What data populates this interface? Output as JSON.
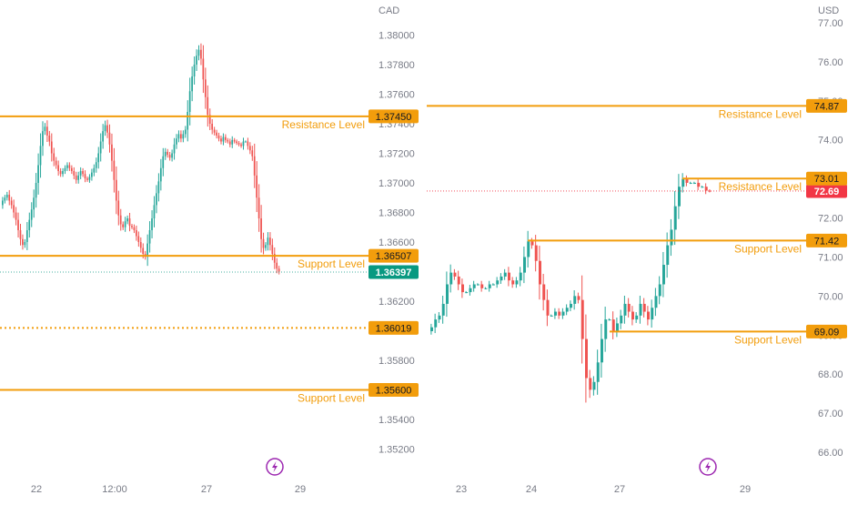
{
  "colors": {
    "up": "#26a69a",
    "down": "#ef5350",
    "level": "#f29d0c",
    "axis_text": "#787b86",
    "last_left": "#089981",
    "last_right": "#f23645",
    "marker": "#9c27b0"
  },
  "icons": {
    "marker": "lightning-bolt-icon"
  },
  "chart_data": [
    {
      "type": "candlestick",
      "currency": "CAD",
      "ylim": [
        1.351,
        1.3808
      ],
      "y_ticks": [
        "1.38000",
        "1.37800",
        "1.37600",
        "1.37400",
        "1.37200",
        "1.37000",
        "1.36800",
        "1.36600",
        "1.36400",
        "1.36200",
        "1.36000",
        "1.35800",
        "1.35600",
        "1.35400",
        "1.35200"
      ],
      "x_ticks": [
        "22",
        "12:00",
        "27",
        "29"
      ],
      "last_price": "1.36397",
      "series": [
        {
          "name": "Price",
          "open": [
            1.3685,
            1.3688,
            1.369,
            1.3692,
            1.3688,
            1.3685,
            1.368,
            1.3675,
            1.3668,
            1.3662,
            1.3658,
            1.366,
            1.3668,
            1.3675,
            1.3682,
            1.369,
            1.37,
            1.3712,
            1.3725,
            1.3735,
            1.3738,
            1.3732,
            1.3728,
            1.372,
            1.3715,
            1.3712,
            1.3708,
            1.3706,
            1.3708,
            1.371,
            1.3712,
            1.371,
            1.3708,
            1.3705,
            1.3702,
            1.3705,
            1.3708,
            1.3706,
            1.3703,
            1.3702,
            1.3704,
            1.3707,
            1.371,
            1.3714,
            1.372,
            1.3728,
            1.3735,
            1.3739,
            1.3734,
            1.3726,
            1.3715,
            1.3702,
            1.3688,
            1.3678,
            1.3672,
            1.367,
            1.3674,
            1.3676,
            1.3671,
            1.367,
            1.3668,
            1.3664,
            1.366,
            1.3656,
            1.3652,
            1.365,
            1.3659,
            1.3668,
            1.3676,
            1.3685,
            1.3693,
            1.3701,
            1.371,
            1.3718,
            1.3721,
            1.3719,
            1.3717,
            1.372,
            1.3726,
            1.373,
            1.3733,
            1.373,
            1.3733,
            1.3736,
            1.3748,
            1.3762,
            1.3772,
            1.378,
            1.3786,
            1.379,
            1.3784,
            1.377,
            1.3758,
            1.3746,
            1.374,
            1.3736,
            1.3734,
            1.3732,
            1.373,
            1.3728,
            1.3731,
            1.3729,
            1.3728,
            1.3726,
            1.3729,
            1.3728,
            1.3727,
            1.3726,
            1.3725,
            1.3728,
            1.3728,
            1.3725,
            1.3722,
            1.3718,
            1.3705,
            1.369,
            1.3676,
            1.3662,
            1.3656,
            1.3658,
            1.3663,
            1.3658,
            1.3652,
            1.3646,
            1.3642
          ],
          "close": [
            1.3688,
            1.369,
            1.3692,
            1.3688,
            1.3685,
            1.368,
            1.3675,
            1.3668,
            1.3662,
            1.3658,
            1.366,
            1.3668,
            1.3675,
            1.3682,
            1.369,
            1.37,
            1.3712,
            1.3725,
            1.3735,
            1.3738,
            1.3732,
            1.3728,
            1.372,
            1.3715,
            1.3712,
            1.3708,
            1.3706,
            1.3708,
            1.371,
            1.3712,
            1.371,
            1.3708,
            1.3705,
            1.3702,
            1.3705,
            1.3708,
            1.3706,
            1.3703,
            1.3702,
            1.3704,
            1.3707,
            1.371,
            1.3714,
            1.372,
            1.3728,
            1.3735,
            1.3739,
            1.3734,
            1.3726,
            1.3715,
            1.3702,
            1.3688,
            1.3678,
            1.3672,
            1.367,
            1.3674,
            1.3676,
            1.3671,
            1.367,
            1.3668,
            1.3664,
            1.366,
            1.3656,
            1.3652,
            1.365,
            1.3659,
            1.3668,
            1.3676,
            1.3685,
            1.3693,
            1.3701,
            1.371,
            1.3718,
            1.3721,
            1.3719,
            1.3717,
            1.372,
            1.3726,
            1.373,
            1.3733,
            1.373,
            1.3733,
            1.3736,
            1.3748,
            1.3762,
            1.3772,
            1.378,
            1.3786,
            1.379,
            1.3784,
            1.377,
            1.3758,
            1.3746,
            1.374,
            1.3736,
            1.3734,
            1.3732,
            1.373,
            1.3728,
            1.3731,
            1.3729,
            1.3728,
            1.3726,
            1.3729,
            1.3728,
            1.3727,
            1.3726,
            1.3725,
            1.3728,
            1.3728,
            1.3725,
            1.3722,
            1.3718,
            1.3705,
            1.369,
            1.3676,
            1.3662,
            1.3656,
            1.3658,
            1.3663,
            1.3658,
            1.3652,
            1.3646,
            1.3642,
            1.364
          ]
        }
      ],
      "levels": [
        {
          "name": "Resistance Level",
          "price": "1.37450",
          "style": "solid"
        },
        {
          "name": "Support Level",
          "price": "1.36507",
          "style": "solid"
        },
        {
          "name": "",
          "price": "1.36019",
          "style": "dotted"
        },
        {
          "name": "Support Level",
          "price": "1.35600",
          "style": "solid"
        }
      ]
    },
    {
      "type": "candlestick",
      "currency": "USD",
      "ylim": [
        65.7,
        77.5
      ],
      "y_ticks": [
        "77.00",
        "76.00",
        "75.00",
        "74.00",
        "73.00",
        "72.00",
        "71.00",
        "70.00",
        "69.00",
        "68.00",
        "67.00",
        "66.00"
      ],
      "x_ticks": [
        "23",
        "24",
        "27",
        "29"
      ],
      "last_price": "72.69",
      "series": [
        {
          "name": "Price",
          "open": [
            69.1,
            69.2,
            69.4,
            69.5,
            69.8,
            70.3,
            70.6,
            70.5,
            70.3,
            70.1,
            70.1,
            70.2,
            70.3,
            70.3,
            70.2,
            70.2,
            70.3,
            70.3,
            70.4,
            70.5,
            70.6,
            70.4,
            70.3,
            70.4,
            70.6,
            71.0,
            71.4,
            71.3,
            70.9,
            70.3,
            69.9,
            69.5,
            69.5,
            69.6,
            69.5,
            69.6,
            69.7,
            69.8,
            70.0,
            69.9,
            68.9,
            67.9,
            67.6,
            67.8,
            68.3,
            68.9,
            69.4,
            69.4,
            69.1,
            69.3,
            69.5,
            69.8,
            69.6,
            69.4,
            69.5,
            69.8,
            69.6,
            69.4,
            69.7,
            70.0,
            70.3,
            70.8,
            71.3,
            71.7,
            72.3,
            72.8,
            73.0,
            72.9,
            72.9,
            72.9,
            72.8,
            72.8,
            72.7
          ],
          "close": [
            69.2,
            69.4,
            69.5,
            69.8,
            70.3,
            70.6,
            70.5,
            70.3,
            70.1,
            70.1,
            70.2,
            70.3,
            70.3,
            70.2,
            70.2,
            70.3,
            70.3,
            70.4,
            70.5,
            70.6,
            70.4,
            70.3,
            70.4,
            70.6,
            71.0,
            71.4,
            71.3,
            70.9,
            70.3,
            69.9,
            69.5,
            69.5,
            69.6,
            69.5,
            69.6,
            69.7,
            69.8,
            70.0,
            69.9,
            68.9,
            67.9,
            67.6,
            67.8,
            68.3,
            68.9,
            69.4,
            69.4,
            69.1,
            69.3,
            69.5,
            69.8,
            69.6,
            69.4,
            69.5,
            69.8,
            69.6,
            69.4,
            69.7,
            70.0,
            70.3,
            70.8,
            71.3,
            71.7,
            72.3,
            72.8,
            73.0,
            72.9,
            72.9,
            72.9,
            72.8,
            72.8,
            72.7,
            72.69
          ]
        }
      ],
      "levels": [
        {
          "name": "Resistance Level",
          "price": "74.87",
          "style": "solid"
        },
        {
          "name": "Resistance Level",
          "price": "73.01",
          "style": "solid"
        },
        {
          "name": "Support Level",
          "price": "71.42",
          "style": "solid"
        },
        {
          "name": "Support Level",
          "price": "69.09",
          "style": "solid"
        }
      ]
    }
  ]
}
